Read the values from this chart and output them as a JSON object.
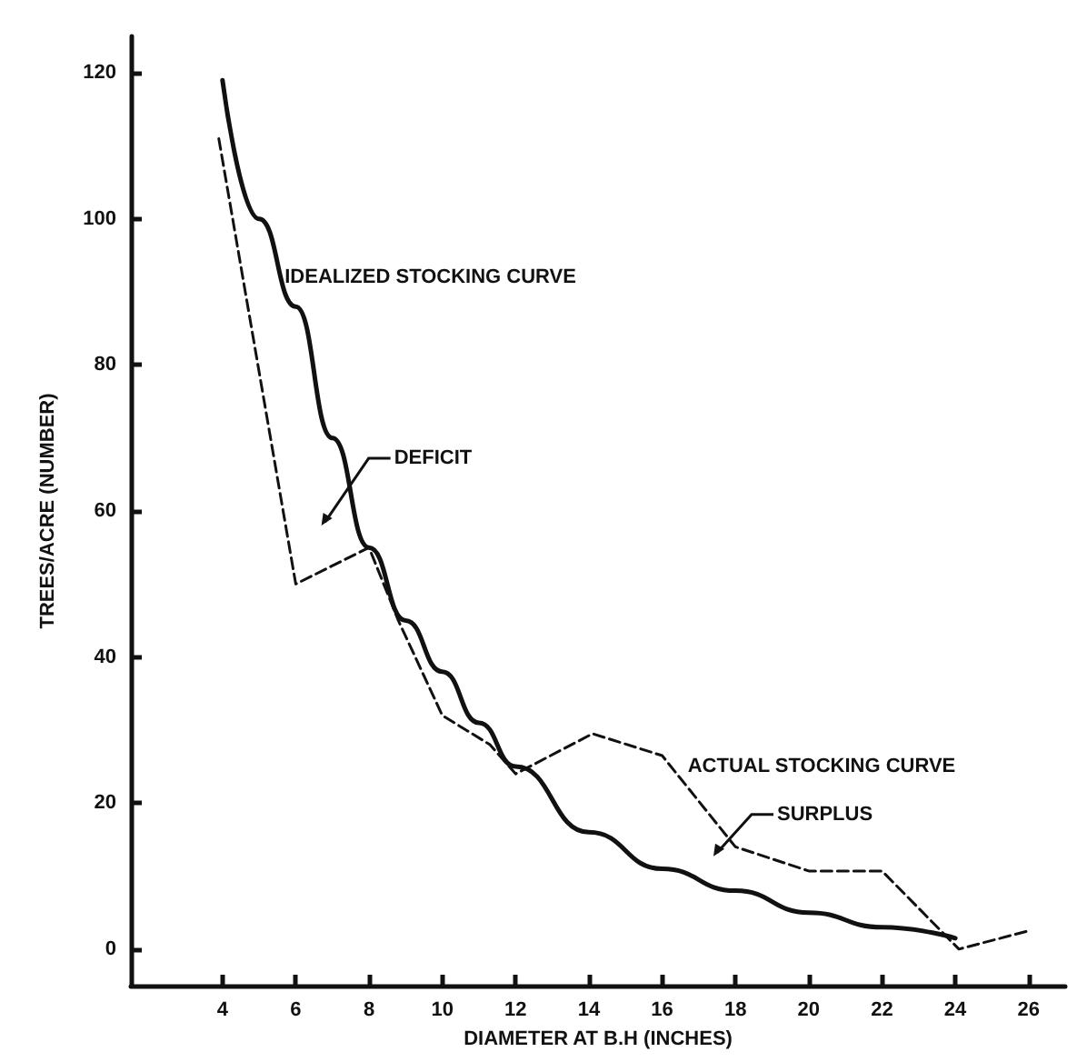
{
  "chart_data": {
    "type": "line",
    "xlabel": "DIAMETER AT B.H (INCHES)",
    "ylabel": "TREES/ACRE (NUMBER)",
    "xlim": [
      1.5,
      27
    ],
    "xticks": [
      4,
      6,
      8,
      10,
      12,
      14,
      16,
      18,
      20,
      22,
      24,
      26
    ],
    "ylim": [
      -5,
      125
    ],
    "yticks": [
      0,
      20,
      40,
      60,
      80,
      100,
      120
    ],
    "grid": false,
    "marker": "none",
    "series": [
      {
        "color": "#111111",
        "line_style": "solid",
        "x": [
          4,
          5,
          6,
          7,
          8,
          9,
          10,
          11,
          12,
          14,
          16,
          18,
          20,
          22,
          24
        ],
        "values": [
          119,
          100,
          88,
          70,
          55,
          45,
          38,
          31,
          25,
          16,
          11,
          8,
          5,
          3,
          1.5
        ]
      },
      {
        "color": "#111111",
        "line_style": "dashed",
        "x": [
          3.9,
          6,
          8,
          8.8,
          10,
          11.3,
          12,
          14.1,
          16,
          18,
          20,
          22,
          24.1,
          26
        ],
        "values": [
          111,
          50,
          55,
          45,
          32,
          28,
          24,
          29.5,
          26.5,
          14,
          10.7,
          10.7,
          0,
          2.5
        ]
      }
    ],
    "annotations": [
      {
        "text": "IDEALIZED STOCKING CURVE",
        "x": 5.5,
        "y": 92
      },
      "DEFICIT",
      {
        "text": "ACTUAL STOCKING CURVE",
        "x": 16.4,
        "y": 25
      },
      "SURPLUS"
    ]
  }
}
